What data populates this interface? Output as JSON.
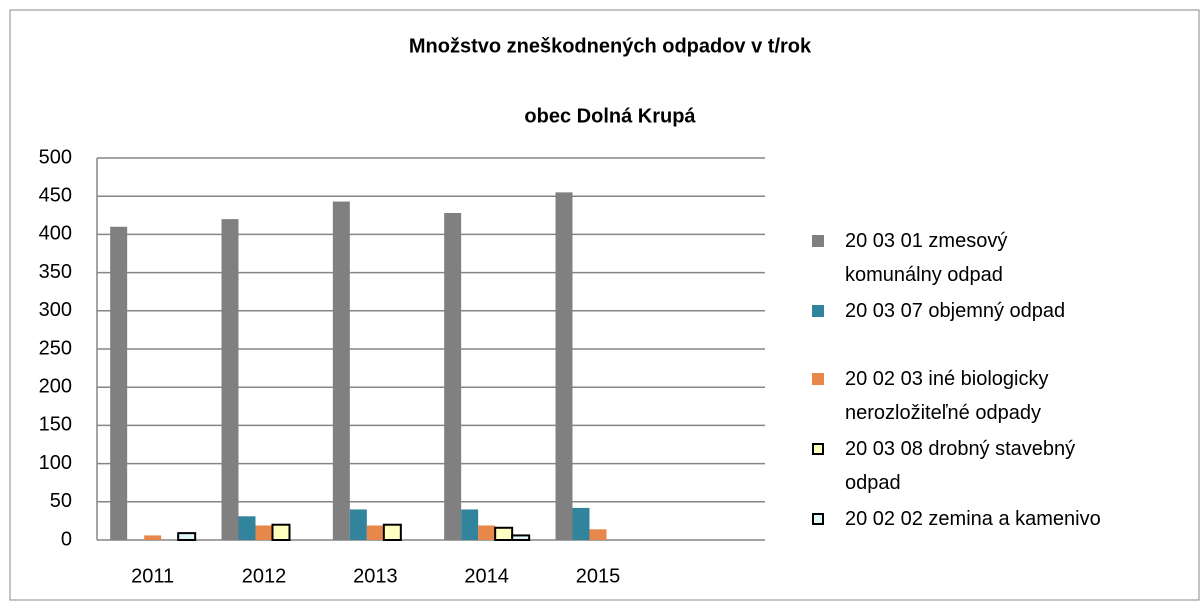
{
  "chart_data": {
    "type": "bar",
    "title": "Množstvo zneškodnených odpadov  v t/rok",
    "subtitle": "obec  Dolná Krupá",
    "categories": [
      "2011",
      "2012",
      "2013",
      "2014",
      "2015",
      null
    ],
    "series": [
      {
        "name": "20 03 01 zmesový komunálny odpad",
        "color": "#808080",
        "values": [
          410,
          420,
          443,
          428,
          455,
          null
        ]
      },
      {
        "name": "20 03 07 objemný odpad",
        "color": "#31849b",
        "values": [
          0,
          31,
          40,
          40,
          42,
          null
        ]
      },
      {
        "name": "20 02 03 iné biologicky nerozložiteľné odpady",
        "color": "#e8874a",
        "values": [
          6,
          19,
          19,
          19,
          14,
          null
        ]
      },
      {
        "name": "20 03 08 drobný stavebný odpad",
        "color": "#ffffc0",
        "values": [
          0,
          20,
          20,
          16,
          0,
          null
        ]
      },
      {
        "name": "20 02 02 zemina a kamenivo",
        "color": "#ddf6f8",
        "values": [
          9,
          0,
          0,
          6,
          0,
          null
        ]
      }
    ],
    "outlined_series": [
      3,
      4
    ],
    "ylim": [
      0,
      500
    ],
    "yticks": [
      0,
      50,
      100,
      150,
      200,
      250,
      300,
      350,
      400,
      450,
      500
    ],
    "grid": true,
    "legend": "right"
  }
}
